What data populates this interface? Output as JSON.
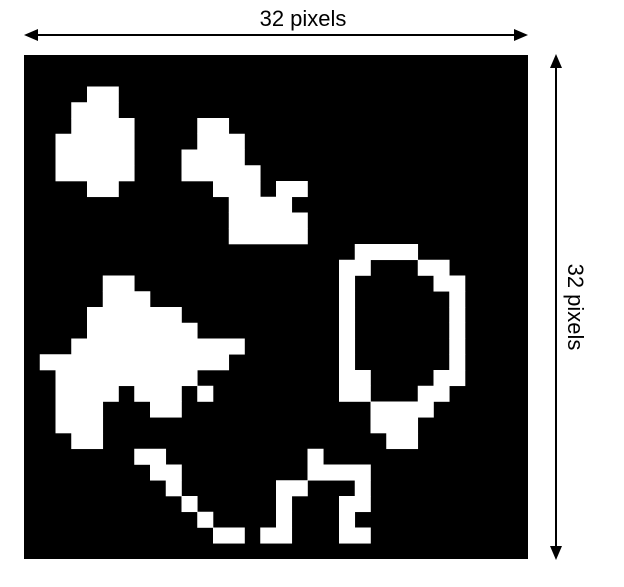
{
  "width_label": "32 pixels",
  "height_label": "32 pixels",
  "grid": {
    "rows": 32,
    "cols": 32,
    "background": "#000000",
    "foreground": "#ffffff",
    "white_rows": [
      [],
      [],
      [
        [
          4,
          5
        ]
      ],
      [
        [
          3,
          5
        ]
      ],
      [
        [
          3,
          6
        ],
        [
          11,
          12
        ]
      ],
      [
        [
          2,
          6
        ],
        [
          11,
          13
        ]
      ],
      [
        [
          2,
          6
        ],
        [
          10,
          13
        ]
      ],
      [
        [
          2,
          6
        ],
        [
          10,
          14
        ]
      ],
      [
        [
          4,
          5
        ],
        [
          12,
          14
        ],
        [
          16,
          17
        ]
      ],
      [
        [
          13,
          16
        ]
      ],
      [
        [
          13,
          17
        ]
      ],
      [
        [
          13,
          17
        ]
      ],
      [
        [
          21,
          24
        ]
      ],
      [
        [
          20,
          21
        ],
        [
          25,
          26
        ]
      ],
      [
        [
          5,
          6
        ],
        [
          20,
          20
        ],
        [
          26,
          27
        ]
      ],
      [
        [
          5,
          7
        ],
        [
          20,
          20
        ],
        [
          27,
          27
        ]
      ],
      [
        [
          4,
          9
        ],
        [
          20,
          20
        ],
        [
          27,
          27
        ]
      ],
      [
        [
          4,
          10
        ],
        [
          20,
          20
        ],
        [
          27,
          27
        ]
      ],
      [
        [
          3,
          11
        ],
        [
          12,
          13
        ],
        [
          20,
          20
        ],
        [
          27,
          27
        ]
      ],
      [
        [
          1,
          3
        ],
        [
          4,
          12
        ],
        [
          20,
          20
        ],
        [
          27,
          27
        ]
      ],
      [
        [
          2,
          4
        ],
        [
          5,
          5
        ],
        [
          6,
          10
        ],
        [
          20,
          21
        ],
        [
          26,
          27
        ]
      ],
      [
        [
          2,
          5
        ],
        [
          7,
          9
        ],
        [
          11,
          11
        ],
        [
          20,
          21
        ],
        [
          25,
          26
        ]
      ],
      [
        [
          2,
          4
        ],
        [
          8,
          9
        ],
        [
          22,
          25
        ]
      ],
      [
        [
          2,
          4
        ],
        [
          22,
          24
        ]
      ],
      [
        [
          3,
          4
        ],
        [
          23,
          24
        ]
      ],
      [
        [
          7,
          8
        ],
        [
          18,
          18
        ]
      ],
      [
        [
          8,
          9
        ],
        [
          18,
          20
        ],
        [
          21,
          21
        ]
      ],
      [
        [
          9,
          9
        ],
        [
          16,
          17
        ],
        [
          21,
          21
        ]
      ],
      [
        [
          10,
          10
        ],
        [
          16,
          16
        ],
        [
          20,
          21
        ]
      ],
      [
        [
          11,
          11
        ],
        [
          16,
          16
        ],
        [
          20,
          20
        ]
      ],
      [
        [
          12,
          13
        ],
        [
          15,
          16
        ],
        [
          20,
          21
        ]
      ],
      []
    ]
  }
}
